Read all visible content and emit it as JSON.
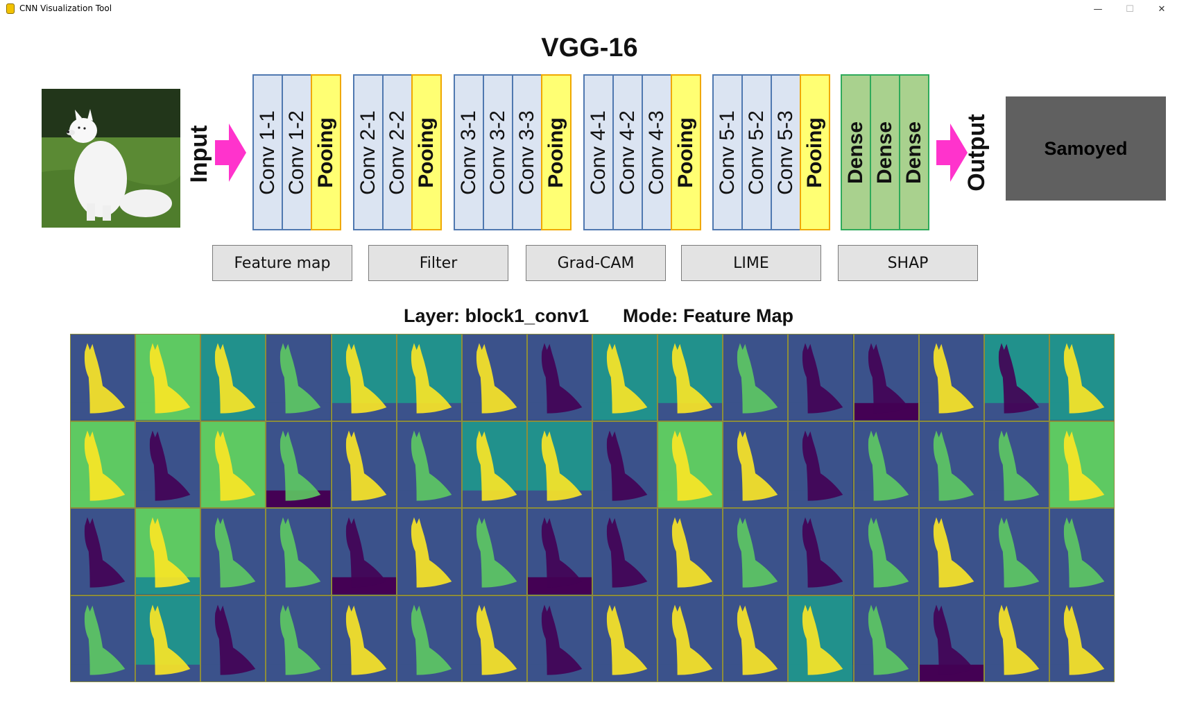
{
  "window": {
    "title": "CNN Visualization Tool",
    "controls": {
      "minimize": "—",
      "maximize": "☐",
      "close": "✕"
    }
  },
  "network": {
    "title": "VGG-16",
    "input_label": "Input",
    "output_label": "Output",
    "blocks": [
      {
        "layers": [
          "Conv 1-1",
          "Conv 1-2"
        ],
        "pool": "Pooing"
      },
      {
        "layers": [
          "Conv 2-1",
          "Conv 2-2"
        ],
        "pool": "Pooing"
      },
      {
        "layers": [
          "Conv 3-1",
          "Conv 3-2",
          "Conv 3-3"
        ],
        "pool": "Pooing"
      },
      {
        "layers": [
          "Conv 4-1",
          "Conv 4-2",
          "Conv 4-3"
        ],
        "pool": "Pooing"
      },
      {
        "layers": [
          "Conv 5-1",
          "Conv 5-2",
          "Conv 5-3"
        ],
        "pool": "Pooing"
      }
    ],
    "dense": [
      "Dense",
      "Dense",
      "Dense"
    ],
    "prediction": "Samoyed"
  },
  "modes": [
    "Feature map",
    "Filter",
    "Grad-CAM",
    "LIME",
    "SHAP"
  ],
  "status": {
    "layer_text": "Layer: block1_conv1",
    "mode_text": "Mode: Feature Map"
  },
  "feature_maps": {
    "rows": 4,
    "cols": 16,
    "colormap": [
      "#440154",
      "#3b528b",
      "#21918c",
      "#5ec962",
      "#fde725"
    ],
    "tones": [
      0.35,
      0.75,
      0.6,
      0.3,
      0.4,
      0.45,
      0.35,
      0.3,
      0.55,
      0.45,
      0.3,
      0.35,
      0.2,
      0.35,
      0.45,
      0.5,
      0.8,
      0.3,
      0.75,
      0.2,
      0.35,
      0.3,
      0.4,
      0.45,
      0.3,
      0.8,
      0.35,
      0.3,
      0.3,
      0.3,
      0.3,
      0.75,
      0.25,
      0.7,
      0.3,
      0.3,
      0.15,
      0.35,
      0.3,
      0.2,
      0.3,
      0.35,
      0.3,
      0.3,
      0.3,
      0.35,
      0.3,
      0.3,
      0.3,
      0.4,
      0.25,
      0.3,
      0.35,
      0.3,
      0.35,
      0.35,
      0.35,
      0.35,
      0.35,
      0.6,
      0.3,
      0.15,
      0.35,
      0.35
    ],
    "dark_dog": [
      false,
      false,
      false,
      false,
      false,
      false,
      false,
      true,
      false,
      false,
      false,
      true,
      true,
      false,
      true,
      false,
      false,
      true,
      false,
      false,
      false,
      false,
      false,
      false,
      true,
      false,
      false,
      true,
      false,
      false,
      false,
      false,
      true,
      false,
      false,
      false,
      true,
      false,
      false,
      true,
      true,
      false,
      false,
      true,
      false,
      false,
      false,
      false,
      false,
      false,
      true,
      false,
      false,
      false,
      false,
      true,
      false,
      false,
      false,
      false,
      false,
      true,
      false,
      false
    ]
  },
  "colors": {
    "arrow": "#ff33cc",
    "conv_fill": "#dbe4f2",
    "pool_fill": "#ffff73",
    "dense_fill": "#a9d18e",
    "output_fill": "#606060",
    "button_fill": "#e3e3e3"
  }
}
